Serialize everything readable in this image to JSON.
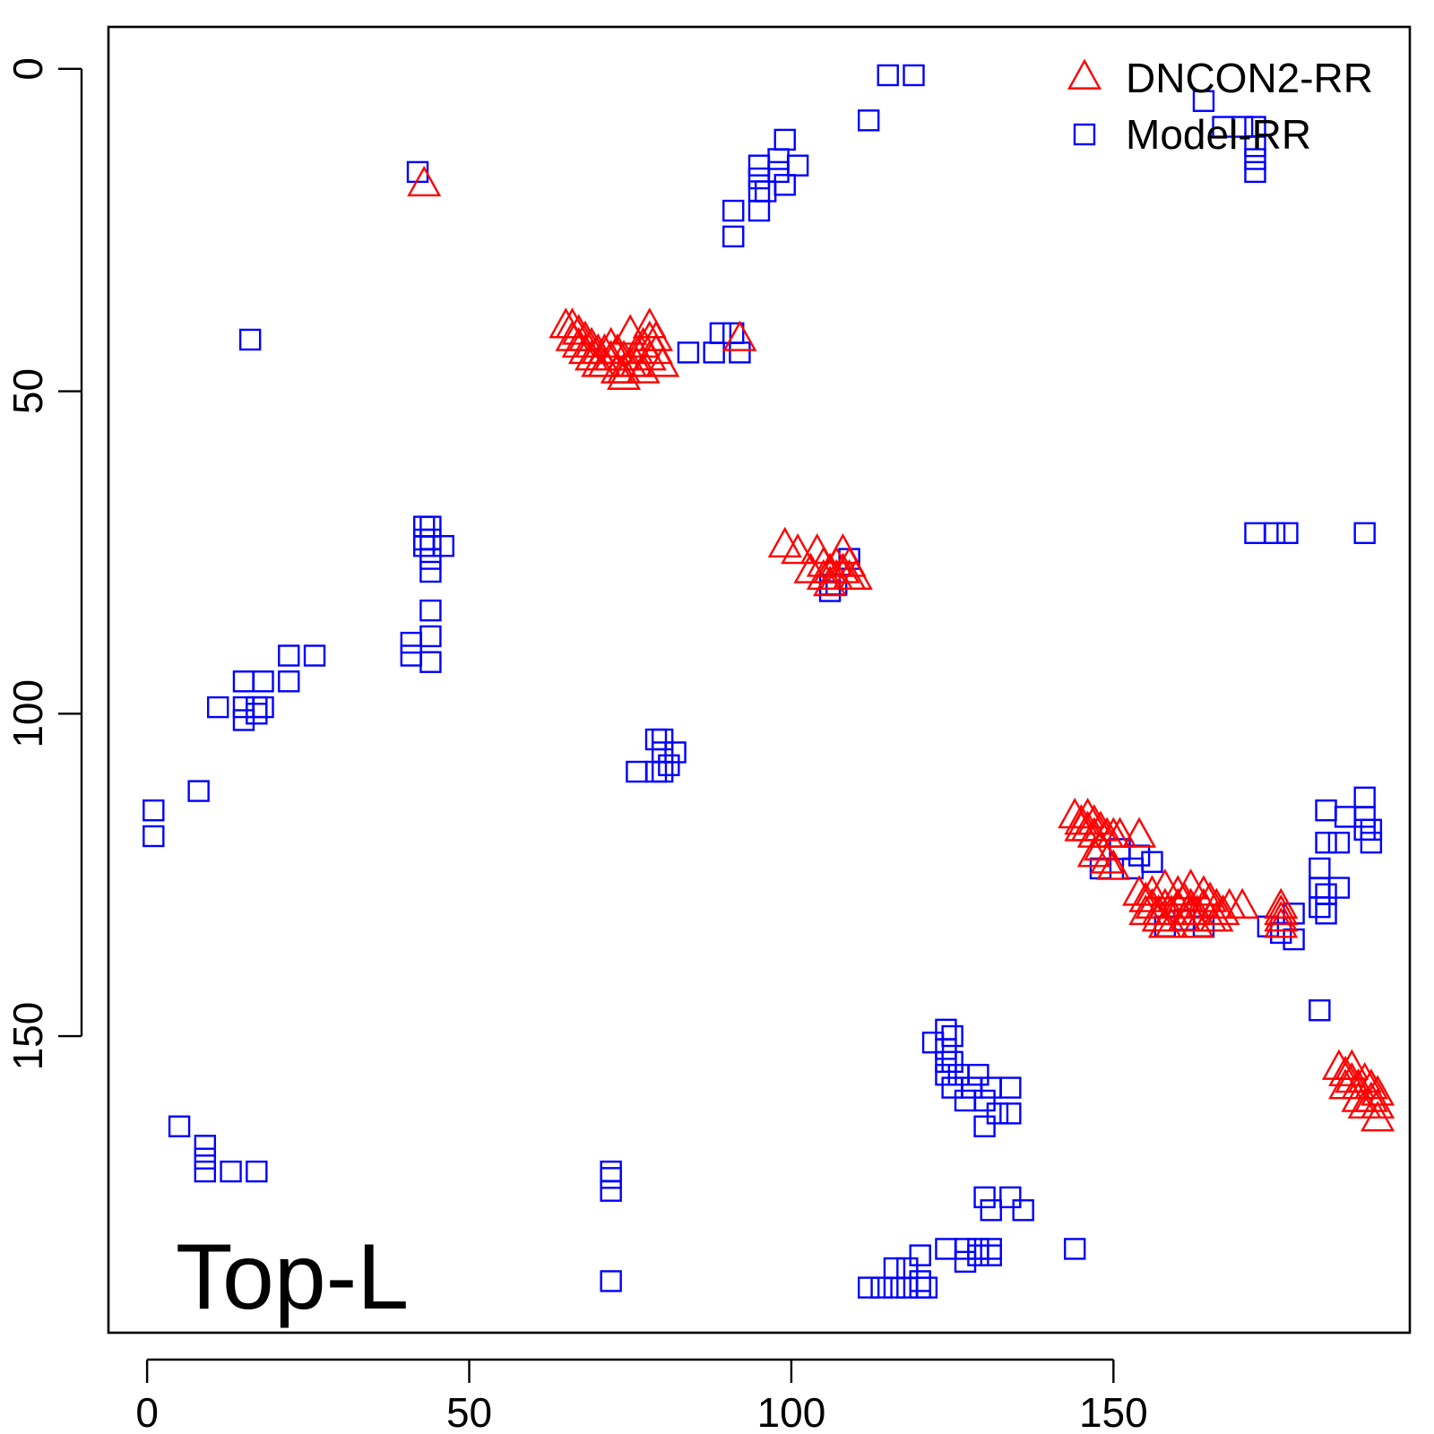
{
  "chart_data": {
    "type": "scatter",
    "title": "",
    "xlabel": "",
    "ylabel": "",
    "annotation": "Top-L",
    "xlim": [
      -6,
      196
    ],
    "ylim": [
      -6.5,
      196
    ],
    "y_reversed": true,
    "x_ticks": [
      0,
      50,
      100,
      150
    ],
    "y_ticks": [
      0,
      50,
      100,
      150
    ],
    "legend_position": "top-right",
    "series": [
      {
        "name": "DNCON2-RR",
        "marker": "triangle",
        "color": "#ff0000",
        "points": [
          [
            43,
            18
          ],
          [
            92,
            42
          ],
          [
            65,
            40
          ],
          [
            66,
            40
          ],
          [
            67,
            41
          ],
          [
            68,
            42
          ],
          [
            69,
            43
          ],
          [
            70,
            44
          ],
          [
            71,
            44
          ],
          [
            72,
            43
          ],
          [
            73,
            44
          ],
          [
            74,
            45
          ],
          [
            75,
            46
          ],
          [
            76,
            44
          ],
          [
            77,
            43
          ],
          [
            78,
            42
          ],
          [
            79,
            44
          ],
          [
            80,
            46
          ],
          [
            66,
            42
          ],
          [
            68,
            44
          ],
          [
            70,
            46
          ],
          [
            72,
            45
          ],
          [
            74,
            47
          ],
          [
            76,
            46
          ],
          [
            78,
            45
          ],
          [
            75,
            41
          ],
          [
            78,
            40
          ],
          [
            79,
            42
          ],
          [
            73,
            47
          ],
          [
            74,
            48
          ],
          [
            77,
            47
          ],
          [
            71,
            46
          ],
          [
            69,
            45
          ],
          [
            67,
            43
          ],
          [
            99,
            74
          ],
          [
            101,
            75
          ],
          [
            104,
            75
          ],
          [
            105,
            77
          ],
          [
            106,
            78
          ],
          [
            107,
            79
          ],
          [
            108,
            78
          ],
          [
            109,
            77
          ],
          [
            110,
            79
          ],
          [
            105,
            79
          ],
          [
            106,
            80
          ],
          [
            108,
            75
          ],
          [
            103,
            78
          ],
          [
            107,
            77
          ],
          [
            109,
            79
          ],
          [
            144,
            116
          ],
          [
            145,
            117
          ],
          [
            146,
            116
          ],
          [
            147,
            117
          ],
          [
            148,
            118
          ],
          [
            149,
            119
          ],
          [
            150,
            119
          ],
          [
            151,
            119
          ],
          [
            154,
            119
          ],
          [
            145,
            118
          ],
          [
            147,
            119
          ],
          [
            146,
            118
          ],
          [
            148,
            121
          ],
          [
            149,
            123
          ],
          [
            150,
            124
          ],
          [
            147,
            122
          ],
          [
            154,
            128
          ],
          [
            155,
            129
          ],
          [
            156,
            130
          ],
          [
            157,
            131
          ],
          [
            158,
            130
          ],
          [
            159,
            131
          ],
          [
            160,
            130
          ],
          [
            161,
            129
          ],
          [
            162,
            130
          ],
          [
            163,
            131
          ],
          [
            164,
            130
          ],
          [
            165,
            129
          ],
          [
            166,
            130
          ],
          [
            167,
            131
          ],
          [
            168,
            130
          ],
          [
            170,
            130
          ],
          [
            156,
            128
          ],
          [
            158,
            127
          ],
          [
            160,
            128
          ],
          [
            162,
            127
          ],
          [
            164,
            128
          ],
          [
            157,
            132
          ],
          [
            159,
            133
          ],
          [
            161,
            132
          ],
          [
            163,
            133
          ],
          [
            165,
            132
          ],
          [
            155,
            131
          ],
          [
            158,
            133
          ],
          [
            162,
            131
          ],
          [
            166,
            132
          ],
          [
            176,
            130
          ],
          [
            176,
            131
          ],
          [
            176,
            132
          ],
          [
            176,
            133
          ],
          [
            185,
            155
          ],
          [
            186,
            156
          ],
          [
            187,
            155
          ],
          [
            187,
            157
          ],
          [
            188,
            158
          ],
          [
            189,
            157
          ],
          [
            190,
            158
          ],
          [
            191,
            159
          ],
          [
            186,
            158
          ],
          [
            188,
            160
          ],
          [
            190,
            160
          ],
          [
            191,
            161
          ],
          [
            191,
            163
          ],
          [
            189,
            161
          ]
        ]
      },
      {
        "name": "Model-RR",
        "marker": "square",
        "color": "#0000ff",
        "points": [
          [
            115,
            1
          ],
          [
            119,
            1
          ],
          [
            164,
            5
          ],
          [
            167,
            9
          ],
          [
            170,
            9
          ],
          [
            172,
            9
          ],
          [
            112,
            8
          ],
          [
            99,
            11
          ],
          [
            98,
            14
          ],
          [
            98,
            16
          ],
          [
            101,
            15
          ],
          [
            95,
            15
          ],
          [
            95,
            17
          ],
          [
            99,
            18
          ],
          [
            95,
            19
          ],
          [
            96,
            19
          ],
          [
            172,
            16
          ],
          [
            172,
            12
          ],
          [
            172,
            14
          ],
          [
            42,
            16
          ],
          [
            91,
            22
          ],
          [
            95,
            22
          ],
          [
            91,
            26
          ],
          [
            16,
            42
          ],
          [
            89,
            41
          ],
          [
            91,
            41
          ],
          [
            84,
            44
          ],
          [
            88,
            44
          ],
          [
            92,
            44
          ],
          [
            43,
            71
          ],
          [
            44,
            71
          ],
          [
            43,
            73
          ],
          [
            44,
            73
          ],
          [
            46,
            74
          ],
          [
            43,
            74
          ],
          [
            44,
            76
          ],
          [
            44,
            78
          ],
          [
            44,
            84
          ],
          [
            44,
            88
          ],
          [
            41,
            89
          ],
          [
            41,
            91
          ],
          [
            44,
            92
          ],
          [
            22,
            91
          ],
          [
            26,
            91
          ],
          [
            22,
            95
          ],
          [
            15,
            95
          ],
          [
            18,
            95
          ],
          [
            11,
            99
          ],
          [
            15,
            99
          ],
          [
            17,
            99
          ],
          [
            15,
            101
          ],
          [
            17,
            100
          ],
          [
            18,
            99
          ],
          [
            79,
            104
          ],
          [
            80,
            104
          ],
          [
            80,
            106
          ],
          [
            82,
            106
          ],
          [
            76,
            109
          ],
          [
            79,
            109
          ],
          [
            80,
            109
          ],
          [
            81,
            108
          ],
          [
            1,
            115
          ],
          [
            1,
            119
          ],
          [
            8,
            112
          ],
          [
            109,
            76
          ],
          [
            106,
            80
          ],
          [
            106,
            81
          ],
          [
            107,
            80
          ],
          [
            172,
            72
          ],
          [
            175,
            72
          ],
          [
            177,
            72
          ],
          [
            189,
            72
          ],
          [
            151,
            121
          ],
          [
            153,
            124
          ],
          [
            154,
            122
          ],
          [
            156,
            123
          ],
          [
            148,
            124
          ],
          [
            158,
            133
          ],
          [
            164,
            133
          ],
          [
            161,
            132
          ],
          [
            183,
            115
          ],
          [
            183,
            120
          ],
          [
            186,
            116
          ],
          [
            189,
            113
          ],
          [
            189,
            116
          ],
          [
            189,
            118
          ],
          [
            190,
            120
          ],
          [
            190,
            118
          ],
          [
            185,
            120
          ],
          [
            182,
            124
          ],
          [
            182,
            127
          ],
          [
            183,
            128
          ],
          [
            185,
            127
          ],
          [
            182,
            130
          ],
          [
            183,
            131
          ],
          [
            178,
            131
          ],
          [
            174,
            133
          ],
          [
            176,
            134
          ],
          [
            178,
            135
          ],
          [
            182,
            146
          ],
          [
            124,
            149
          ],
          [
            125,
            150
          ],
          [
            122,
            151
          ],
          [
            124,
            152
          ],
          [
            124,
            154
          ],
          [
            125,
            154
          ],
          [
            126,
            156
          ],
          [
            124,
            156
          ],
          [
            129,
            156
          ],
          [
            125,
            158
          ],
          [
            128,
            158
          ],
          [
            131,
            158
          ],
          [
            134,
            158
          ],
          [
            127,
            160
          ],
          [
            130,
            160
          ],
          [
            132,
            162
          ],
          [
            134,
            162
          ],
          [
            130,
            164
          ],
          [
            5,
            164
          ],
          [
            9,
            167
          ],
          [
            9,
            169
          ],
          [
            9,
            171
          ],
          [
            13,
            171
          ],
          [
            17,
            171
          ],
          [
            72,
            171
          ],
          [
            72,
            172
          ],
          [
            72,
            174
          ],
          [
            72,
            188
          ],
          [
            130,
            175
          ],
          [
            131,
            177
          ],
          [
            134,
            175
          ],
          [
            136,
            177
          ],
          [
            124,
            183
          ],
          [
            127,
            183
          ],
          [
            129,
            183
          ],
          [
            131,
            183
          ],
          [
            127,
            185
          ],
          [
            129,
            184
          ],
          [
            131,
            184
          ],
          [
            144,
            183
          ],
          [
            120,
            184
          ],
          [
            118,
            186
          ],
          [
            116,
            186
          ],
          [
            120,
            188
          ],
          [
            120,
            189
          ],
          [
            112,
            189
          ],
          [
            114,
            189
          ],
          [
            116,
            189
          ],
          [
            118,
            189
          ],
          [
            121,
            189
          ]
        ]
      }
    ]
  }
}
